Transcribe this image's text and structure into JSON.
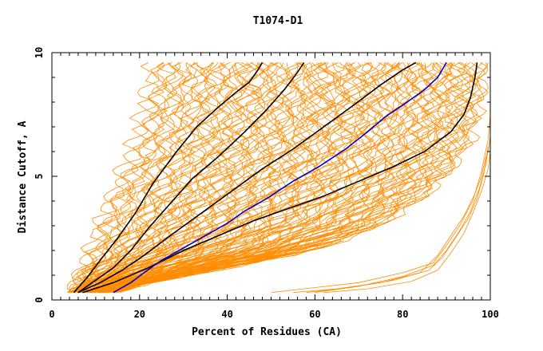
{
  "colors": {
    "background": "#ffffff",
    "axis": "#000000",
    "orange": "#ff8c00",
    "black": "#000000",
    "blue": "#0000cc"
  },
  "chart_data": {
    "type": "line",
    "title": "T1074-D1",
    "xlabel": "Percent of Residues (CA)",
    "ylabel": "Distance Cutoff, A",
    "xlim": [
      0,
      100
    ],
    "ylim": [
      0,
      10
    ],
    "x_ticks": [
      0,
      20,
      40,
      60,
      80,
      100
    ],
    "x_minor_step": 2,
    "y_ticks": [
      0,
      5,
      10
    ],
    "y_minor_step": 1,
    "grid": false,
    "legend": "none",
    "orange_band": {
      "description_free_fields_only": true,
      "count": 120,
      "left_bound": [
        [
          4,
          0.3
        ],
        [
          6,
          1
        ],
        [
          8,
          1.8
        ],
        [
          10,
          2.8
        ],
        [
          12,
          3.8
        ],
        [
          14,
          4.6
        ],
        [
          16,
          5.3
        ],
        [
          18,
          6
        ],
        [
          19.5,
          7
        ],
        [
          21,
          8
        ],
        [
          22,
          9
        ],
        [
          22.5,
          9.6
        ]
      ],
      "right_bound": [
        [
          14,
          0.3
        ],
        [
          25,
          0.8
        ],
        [
          40,
          1.3
        ],
        [
          55,
          1.8
        ],
        [
          65,
          2.3
        ],
        [
          75,
          3
        ],
        [
          82,
          3.8
        ],
        [
          88,
          4.6
        ],
        [
          93,
          5.6
        ],
        [
          96,
          6.6
        ],
        [
          98,
          7.8
        ],
        [
          99,
          9
        ],
        [
          99,
          9.6
        ]
      ],
      "outlier_runs": [
        [
          [
            50,
            0.3
          ],
          [
            60,
            0.5
          ],
          [
            70,
            0.7
          ],
          [
            80,
            1.1
          ],
          [
            87,
            1.5
          ],
          [
            90,
            2.2
          ],
          [
            93,
            3
          ],
          [
            96,
            4
          ],
          [
            98,
            5.2
          ],
          [
            99.5,
            6.5
          ],
          [
            100,
            7.5
          ]
        ],
        [
          [
            55,
            0.3
          ],
          [
            65,
            0.45
          ],
          [
            75,
            0.7
          ],
          [
            84,
            1.1
          ],
          [
            88,
            1.8
          ],
          [
            91,
            2.6
          ],
          [
            94,
            3.4
          ],
          [
            96.5,
            4.3
          ],
          [
            98,
            5
          ],
          [
            99,
            5.8
          ]
        ],
        [
          [
            58,
            0.3
          ],
          [
            68,
            0.5
          ],
          [
            78,
            0.8
          ],
          [
            86,
            1.2
          ],
          [
            89,
            1.7
          ],
          [
            92,
            2.5
          ],
          [
            95,
            3.3
          ],
          [
            97,
            4.1
          ],
          [
            98.5,
            5.1
          ],
          [
            99.5,
            6.2
          ]
        ],
        [
          [
            60,
            0.3
          ],
          [
            70,
            0.55
          ],
          [
            80,
            0.95
          ],
          [
            87,
            1.4
          ],
          [
            90,
            2
          ],
          [
            93,
            2.8
          ],
          [
            95.5,
            3.6
          ],
          [
            97.5,
            4.5
          ],
          [
            99,
            5.5
          ],
          [
            100,
            6.6
          ]
        ],
        [
          [
            62,
            0.3
          ],
          [
            72,
            0.45
          ],
          [
            82,
            0.75
          ],
          [
            88,
            1.2
          ],
          [
            91,
            1.9
          ],
          [
            94,
            2.7
          ],
          [
            96,
            3.5
          ],
          [
            98,
            4.4
          ],
          [
            99.5,
            5.3
          ],
          [
            100,
            6
          ]
        ]
      ]
    },
    "series": [
      {
        "color": "black",
        "points": [
          [
            5,
            0.3
          ],
          [
            8,
            0.9
          ],
          [
            11,
            1.6
          ],
          [
            15,
            2.5
          ],
          [
            19,
            3.5
          ],
          [
            23,
            4.7
          ],
          [
            28,
            5.9
          ],
          [
            33,
            7
          ],
          [
            38,
            7.8
          ],
          [
            42,
            8.4
          ],
          [
            45,
            8.8
          ],
          [
            47,
            9.3
          ],
          [
            48,
            9.6
          ]
        ]
      },
      {
        "color": "black",
        "points": [
          [
            6,
            0.3
          ],
          [
            10,
            0.8
          ],
          [
            14,
            1.3
          ],
          [
            18,
            2
          ],
          [
            22,
            2.9
          ],
          [
            27,
            3.9
          ],
          [
            32,
            4.9
          ],
          [
            38,
            5.8
          ],
          [
            44,
            6.8
          ],
          [
            49,
            7.7
          ],
          [
            53,
            8.5
          ],
          [
            56,
            9.2
          ],
          [
            57.5,
            9.6
          ]
        ]
      },
      {
        "color": "black",
        "points": [
          [
            6,
            0.3
          ],
          [
            11,
            0.7
          ],
          [
            16,
            1.2
          ],
          [
            21,
            1.8
          ],
          [
            27,
            2.6
          ],
          [
            34,
            3.5
          ],
          [
            41,
            4.4
          ],
          [
            48,
            5.3
          ],
          [
            55,
            6.1
          ],
          [
            62,
            7
          ],
          [
            69,
            7.9
          ],
          [
            75,
            8.7
          ],
          [
            80,
            9.3
          ],
          [
            83,
            9.6
          ]
        ]
      },
      {
        "color": "black",
        "points": [
          [
            7,
            0.3
          ],
          [
            14,
            0.7
          ],
          [
            22,
            1.3
          ],
          [
            30,
            2
          ],
          [
            38,
            2.6
          ],
          [
            46,
            3.2
          ],
          [
            54,
            3.7
          ],
          [
            62,
            4.2
          ],
          [
            70,
            4.8
          ],
          [
            78,
            5.4
          ],
          [
            85,
            6
          ],
          [
            91,
            6.8
          ],
          [
            94,
            7.5
          ],
          [
            95.5,
            8.2
          ],
          [
            96.5,
            9
          ],
          [
            97,
            9.6
          ]
        ]
      },
      {
        "color": "blue",
        "points": [
          [
            14,
            0.3
          ],
          [
            18,
            0.7
          ],
          [
            21,
            1.1
          ],
          [
            25,
            1.6
          ],
          [
            30,
            2.1
          ],
          [
            35,
            2.6
          ],
          [
            40,
            3.1
          ],
          [
            44,
            3.6
          ],
          [
            49,
            4.1
          ],
          [
            55,
            4.8
          ],
          [
            61,
            5.4
          ],
          [
            67,
            6.1
          ],
          [
            72,
            6.8
          ],
          [
            76,
            7.4
          ],
          [
            81,
            8
          ],
          [
            85,
            8.5
          ],
          [
            88,
            9
          ],
          [
            90,
            9.6
          ]
        ]
      }
    ]
  }
}
